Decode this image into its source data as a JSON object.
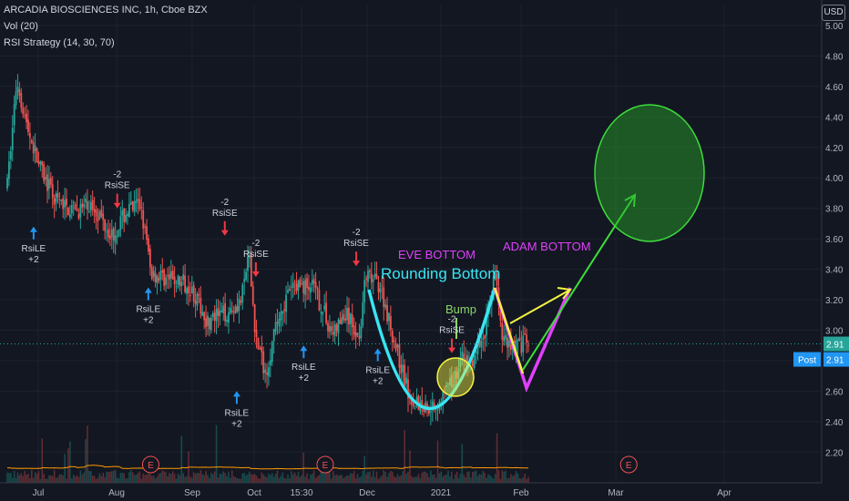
{
  "header": {
    "title": "ARCADIA BIOSCIENCES INC, 1h, Cboe BZX",
    "vol": "Vol (20)",
    "strategy": "RSI Strategy (14, 30, 70)",
    "currency": "USD"
  },
  "colors": {
    "background": "#131722",
    "up": "#26a69a",
    "down": "#ef5350",
    "cyan": "#39e5f2",
    "magenta": "#e040fb",
    "yellow": "#f5f542",
    "green": "#3ddc3d",
    "buy_signal": "#2196f3",
    "sell_signal": "#f23645",
    "price_tag": "#26a69a",
    "post_tag": "#2196f3"
  },
  "chart_data": {
    "type": "candlestick",
    "y_axis": {
      "min": 2.1,
      "max": 5.0,
      "ticks": [
        "5.00",
        "4.80",
        "4.60",
        "4.40",
        "4.20",
        "4.00",
        "3.80",
        "3.60",
        "3.40",
        "3.20",
        "3.00",
        "2.80",
        "2.60",
        "2.40",
        "2.20"
      ]
    },
    "x_axis": {
      "ticks": [
        "Jul",
        "Aug",
        "Sep",
        "Oct",
        "15:30",
        "Dec",
        "2021",
        "Feb",
        "Mar",
        "Apr"
      ]
    },
    "last_price": {
      "value": "2.91",
      "label": "2.91"
    },
    "post_price": {
      "label": "Post",
      "value": "2.91"
    },
    "price_path": [
      {
        "t": 0.0,
        "p": 3.95
      },
      {
        "t": 0.2,
        "p": 4.65
      },
      {
        "t": 0.4,
        "p": 4.35
      },
      {
        "t": 0.7,
        "p": 4.05
      },
      {
        "t": 1.0,
        "p": 3.85
      },
      {
        "t": 1.4,
        "p": 3.78
      },
      {
        "t": 1.8,
        "p": 3.82
      },
      {
        "t": 2.2,
        "p": 3.62
      },
      {
        "t": 2.5,
        "p": 3.78
      },
      {
        "t": 2.8,
        "p": 3.82
      },
      {
        "t": 3.0,
        "p": 3.38
      },
      {
        "t": 3.4,
        "p": 3.33
      },
      {
        "t": 3.8,
        "p": 3.3
      },
      {
        "t": 4.2,
        "p": 3.05
      },
      {
        "t": 4.6,
        "p": 3.12
      },
      {
        "t": 4.9,
        "p": 3.2
      },
      {
        "t": 5.05,
        "p": 3.5
      },
      {
        "t": 5.2,
        "p": 2.95
      },
      {
        "t": 5.4,
        "p": 2.72
      },
      {
        "t": 5.7,
        "p": 3.12
      },
      {
        "t": 6.0,
        "p": 3.3
      },
      {
        "t": 6.4,
        "p": 3.28
      },
      {
        "t": 6.8,
        "p": 2.98
      },
      {
        "t": 7.1,
        "p": 3.1
      },
      {
        "t": 7.35,
        "p": 2.95
      },
      {
        "t": 7.5,
        "p": 3.35
      },
      {
        "t": 7.8,
        "p": 3.3
      },
      {
        "t": 8.1,
        "p": 2.92
      },
      {
        "t": 8.4,
        "p": 2.58
      },
      {
        "t": 8.7,
        "p": 2.5
      },
      {
        "t": 9.0,
        "p": 2.52
      },
      {
        "t": 9.3,
        "p": 2.65
      },
      {
        "t": 9.5,
        "p": 2.82
      },
      {
        "t": 9.7,
        "p": 2.78
      },
      {
        "t": 10.0,
        "p": 3.0
      },
      {
        "t": 10.2,
        "p": 3.4
      },
      {
        "t": 10.35,
        "p": 2.95
      },
      {
        "t": 10.6,
        "p": 2.9
      },
      {
        "t": 10.9,
        "p": 2.92
      }
    ],
    "signals": [
      {
        "type": "RsiLE",
        "qty": "+2",
        "t": 0.55,
        "p": 3.68,
        "dir": "buy"
      },
      {
        "type": "RsiSE",
        "qty": "-2",
        "t": 2.3,
        "p": 3.8,
        "dir": "sell"
      },
      {
        "type": "RsiLE",
        "qty": "+2",
        "t": 2.95,
        "p": 3.28,
        "dir": "buy"
      },
      {
        "type": "RsiSE",
        "qty": "-2",
        "t": 4.55,
        "p": 3.62,
        "dir": "sell"
      },
      {
        "type": "RsiSE",
        "qty": "-2",
        "t": 5.2,
        "p": 3.35,
        "dir": "sell"
      },
      {
        "type": "RsiLE",
        "qty": "+2",
        "t": 4.8,
        "p": 2.6,
        "dir": "buy"
      },
      {
        "type": "RsiLE",
        "qty": "+2",
        "t": 6.2,
        "p": 2.9,
        "dir": "buy"
      },
      {
        "type": "RsiSE",
        "qty": "-2",
        "t": 7.3,
        "p": 3.42,
        "dir": "sell"
      },
      {
        "type": "RsiLE",
        "qty": "+2",
        "t": 7.75,
        "p": 2.88,
        "dir": "buy"
      },
      {
        "type": "RsiSE",
        "qty": "-2",
        "t": 9.3,
        "p": 2.85,
        "dir": "sell"
      }
    ],
    "earnings_markers": [
      {
        "label": "E",
        "t": 3.0
      },
      {
        "label": "E",
        "t": 6.65
      },
      {
        "label": "E",
        "t": 13.0
      }
    ],
    "annotations": {
      "eve_bottom": "EVE BOTTOM",
      "rounding_bottom": "Rounding Bottom",
      "adam_bottom": "ADAM BOTTOM",
      "bump": "Bump"
    }
  }
}
